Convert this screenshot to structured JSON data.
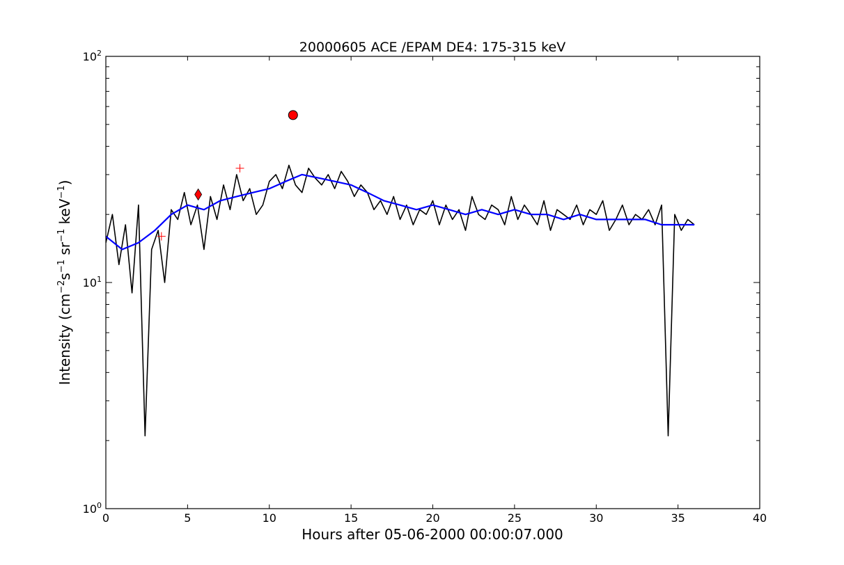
{
  "chart_data": {
    "type": "line",
    "title": "20000605 ACE /EPAM DE4: 175-315 keV",
    "xlabel": "Hours after 05-06-2000 00:00:07.000",
    "ylabel": {
      "prefix": "Intensity (cm",
      "sup1": "−2",
      "mid1": "s",
      "sup2": "−1",
      "mid2": "sr",
      "sup3": "−1",
      "mid3": "keV",
      "sup4": "−1",
      "suffix": ")"
    },
    "xlim": [
      0,
      40
    ],
    "ylim": [
      1,
      100
    ],
    "yscale": "log",
    "grid": false,
    "x_ticks": [
      {
        "value": 0,
        "label": "0"
      },
      {
        "value": 5,
        "label": "5"
      },
      {
        "value": 10,
        "label": "10"
      },
      {
        "value": 15,
        "label": "15"
      },
      {
        "value": 20,
        "label": "20"
      },
      {
        "value": 25,
        "label": "25"
      },
      {
        "value": 30,
        "label": "30"
      },
      {
        "value": 35,
        "label": "35"
      },
      {
        "value": 40,
        "label": "40"
      }
    ],
    "y_ticks": [
      {
        "value": 1,
        "base": "10",
        "exp": "0"
      },
      {
        "value": 10,
        "base": "10",
        "exp": "1"
      },
      {
        "value": 100,
        "base": "10",
        "exp": "2"
      }
    ],
    "series": [
      {
        "kind": "raw",
        "color": "#000000",
        "x": [
          0.0,
          0.4,
          0.8,
          1.2,
          1.6,
          2.0,
          2.4,
          2.8,
          3.2,
          3.6,
          4.0,
          4.4,
          4.8,
          5.2,
          5.6,
          6.0,
          6.4,
          6.8,
          7.2,
          7.6,
          8.0,
          8.4,
          8.8,
          9.2,
          9.6,
          10.0,
          10.4,
          10.8,
          11.2,
          11.6,
          12.0,
          12.4,
          12.8,
          13.2,
          13.6,
          14.0,
          14.4,
          14.8,
          15.2,
          15.6,
          16.0,
          16.4,
          16.8,
          17.2,
          17.6,
          18.0,
          18.4,
          18.8,
          19.2,
          19.6,
          20.0,
          20.4,
          20.8,
          21.2,
          21.6,
          22.0,
          22.4,
          22.8,
          23.2,
          23.6,
          24.0,
          24.4,
          24.8,
          25.2,
          25.6,
          26.0,
          26.4,
          26.8,
          27.2,
          27.6,
          28.0,
          28.4,
          28.8,
          29.2,
          29.6,
          30.0,
          30.4,
          30.8,
          31.2,
          31.6,
          32.0,
          32.4,
          32.8,
          33.2,
          33.6,
          34.0,
          34.4,
          34.8,
          35.2,
          35.6,
          36.0
        ],
        "y": [
          15,
          20,
          12,
          18,
          9,
          22,
          2.1,
          14,
          17,
          10,
          21,
          19,
          25,
          18,
          22,
          14,
          24,
          19,
          27,
          21,
          30,
          23,
          26,
          20,
          22,
          28,
          30,
          26,
          33,
          27,
          25,
          32,
          29,
          27,
          30,
          26,
          31,
          28,
          24,
          27,
          25,
          21,
          23,
          20,
          24,
          19,
          22,
          18,
          21,
          20,
          23,
          18,
          22,
          19,
          21,
          17,
          24,
          20,
          19,
          22,
          21,
          18,
          24,
          19,
          22,
          20,
          18,
          23,
          17,
          21,
          20,
          19,
          22,
          18,
          21,
          20,
          23,
          17,
          19,
          22,
          18,
          20,
          19,
          21,
          18,
          22,
          2.1,
          20,
          17,
          19,
          18
        ]
      },
      {
        "kind": "smoothed",
        "color": "#0000ff",
        "x": [
          0.0,
          1.0,
          2.0,
          3.0,
          4.0,
          5.0,
          6.0,
          7.0,
          8.0,
          9.0,
          10.0,
          11.0,
          12.0,
          13.0,
          14.0,
          15.0,
          16.0,
          17.0,
          18.0,
          19.0,
          20.0,
          21.0,
          22.0,
          23.0,
          24.0,
          25.0,
          26.0,
          27.0,
          28.0,
          29.0,
          30.0,
          31.0,
          32.0,
          33.0,
          34.0,
          35.0,
          36.0
        ],
        "y": [
          16,
          14,
          15,
          17,
          20,
          22,
          21,
          23,
          24,
          25,
          26,
          28,
          30,
          29,
          28,
          27,
          25,
          23,
          22,
          21,
          22,
          21,
          20,
          21,
          20,
          21,
          20,
          20,
          19,
          20,
          19,
          19,
          19,
          19,
          18,
          18,
          18
        ]
      }
    ],
    "markers": [
      {
        "shape": "cross",
        "color": "#ff0000",
        "x": 3.4,
        "y": 16
      },
      {
        "shape": "diamond",
        "color": "#ff0000",
        "x": 5.65,
        "y": 24.5
      },
      {
        "shape": "cross",
        "color": "#ff0000",
        "x": 8.2,
        "y": 32
      },
      {
        "shape": "circle",
        "color": "#ff0000",
        "x": 11.45,
        "y": 55
      }
    ]
  }
}
